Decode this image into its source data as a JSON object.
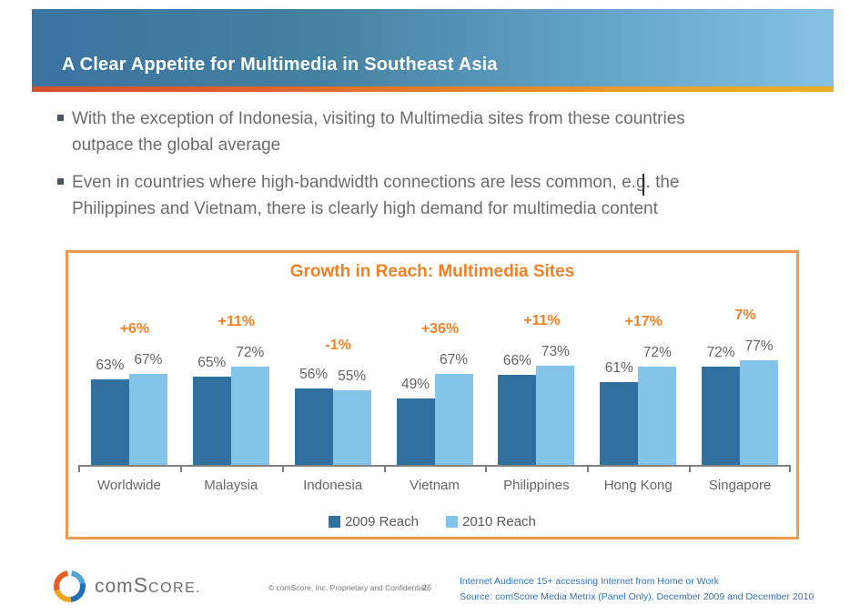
{
  "slide": {
    "title": "A Clear Appetite for Multimedia in Southeast Asia",
    "bullets": [
      {
        "line1": "With the exception of Indonesia, visiting to Multimedia sites from these countries",
        "line2": "outpace the global average"
      },
      {
        "line1": "Even in countries where high-bandwidth connections are less common, e.g. the",
        "line2": "Philippines and Vietnam, there is clearly high demand for multimedia content"
      }
    ]
  },
  "chart_data": {
    "type": "bar",
    "title": "Growth in Reach: Multimedia Sites",
    "categories": [
      "Worldwide",
      "Malaysia",
      "Indonesia",
      "Vietnam",
      "Philippines",
      "Hong Kong",
      "Singapore"
    ],
    "series": [
      {
        "name": "2009 Reach",
        "color": "#31719F",
        "values": [
          63,
          65,
          56,
          49,
          66,
          61,
          72
        ]
      },
      {
        "name": "2010 Reach",
        "color": "#85C4E9",
        "values": [
          67,
          72,
          55,
          67,
          73,
          72,
          77
        ]
      }
    ],
    "growth_labels": [
      "+6%",
      "+11%",
      "-1%",
      "+36%",
      "+11%",
      "+17%",
      "7%"
    ],
    "value_suffix": "%",
    "ylim": [
      0,
      100
    ],
    "grid": false,
    "legend_position": "bottom",
    "accent_color": "#F08125",
    "axis_color": "#808080"
  },
  "footer": {
    "logo": {
      "pre": "com",
      "cap": "S",
      "rest": "CORE",
      "dot": "."
    },
    "copyright": "© comScore, Inc.  Proprietary and Confidential.",
    "page_number": "26",
    "note_line1": "Internet Audience 15+ accessing Internet from Home or Work",
    "note_line2": "Source:  comScore Media Metrix (Panel Only), December 2009 and December 2010"
  }
}
